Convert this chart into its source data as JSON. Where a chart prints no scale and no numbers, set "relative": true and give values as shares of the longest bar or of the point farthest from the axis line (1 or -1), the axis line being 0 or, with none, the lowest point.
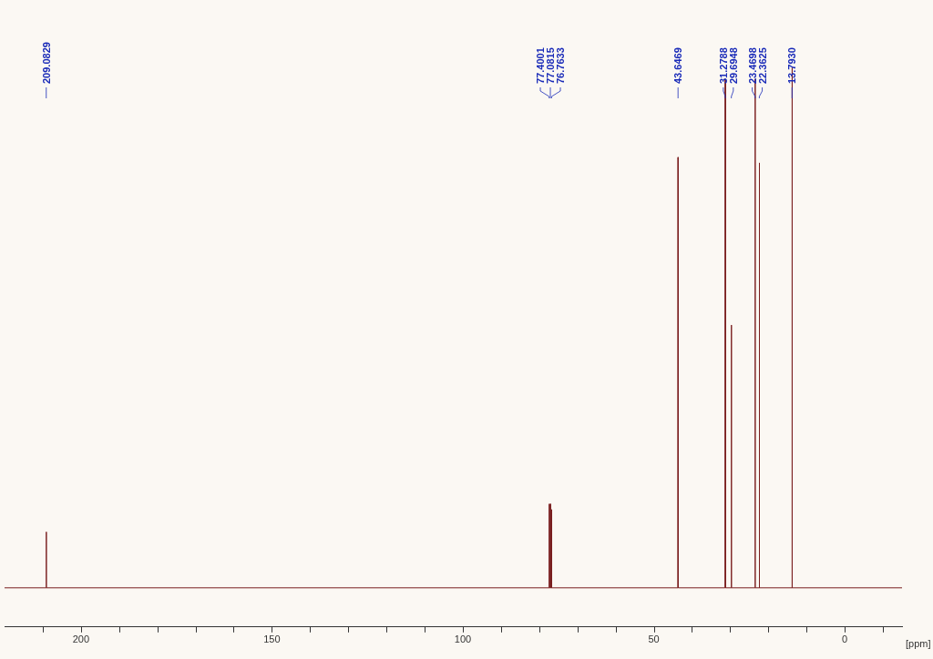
{
  "chart_data": {
    "type": "line",
    "relative": true,
    "xlabel": "[ppm]",
    "xlim": [
      220,
      -15
    ],
    "xticks": [
      {
        "value": 210,
        "label": null
      },
      200,
      {
        "value": 190,
        "label": null
      },
      {
        "value": 180,
        "label": null
      },
      {
        "value": 170,
        "label": null
      },
      {
        "value": 160,
        "label": null
      },
      150,
      {
        "value": 140,
        "label": null
      },
      {
        "value": 130,
        "label": null
      },
      {
        "value": 120,
        "label": null
      },
      {
        "value": 110,
        "label": null
      },
      100,
      {
        "value": 90,
        "label": null
      },
      {
        "value": 80,
        "label": null
      },
      {
        "value": 70,
        "label": null
      },
      {
        "value": 60,
        "label": null
      },
      50,
      {
        "value": 40,
        "label": null
      },
      {
        "value": 30,
        "label": null
      },
      {
        "value": 20,
        "label": null
      },
      {
        "value": 10,
        "label": null
      },
      0,
      {
        "value": -10,
        "label": null
      }
    ],
    "grid": false,
    "legend": false,
    "marker": "none",
    "line_style": "solid",
    "series": [
      {
        "color": "#7a1f1f",
        "x": [
          220,
          209.13,
          209.0829,
          209.03,
          77.45,
          77.4001,
          77.35,
          77.13,
          77.0815,
          77.03,
          76.81,
          76.7633,
          76.71,
          43.7,
          43.6469,
          43.6,
          31.33,
          31.2788,
          31.23,
          29.74,
          29.6948,
          29.64,
          23.52,
          23.4698,
          23.42,
          22.41,
          22.3625,
          22.31,
          13.84,
          13.793,
          13.74,
          -15
        ],
        "values": [
          0.07,
          0.07,
          0.17,
          0.07,
          0.07,
          0.22,
          0.07,
          0.07,
          0.22,
          0.07,
          0.07,
          0.21,
          0.07,
          0.07,
          0.84,
          0.07,
          0.07,
          0.98,
          0.07,
          0.07,
          0.54,
          0.07,
          0.07,
          0.98,
          0.07,
          0.07,
          0.83,
          0.07,
          0.07,
          1,
          0.07,
          0.07
        ]
      }
    ],
    "annotations": [
      {
        "text": "209.0829",
        "x": 209.0829
      },
      {
        "text": "77.4001",
        "x": 77.4001
      },
      {
        "text": "77.0815",
        "x": 77.0815
      },
      {
        "text": "76.7633",
        "x": 76.7633
      },
      {
        "text": "43.6469",
        "x": 43.6469
      },
      {
        "text": "31.2788",
        "x": 31.2788
      },
      {
        "text": "29.6948",
        "x": 29.6948
      },
      {
        "text": "23.4698",
        "x": 23.4698
      },
      {
        "text": "22.3625",
        "x": 22.3625
      },
      {
        "text": "13.7930",
        "x": 13.793
      }
    ]
  }
}
